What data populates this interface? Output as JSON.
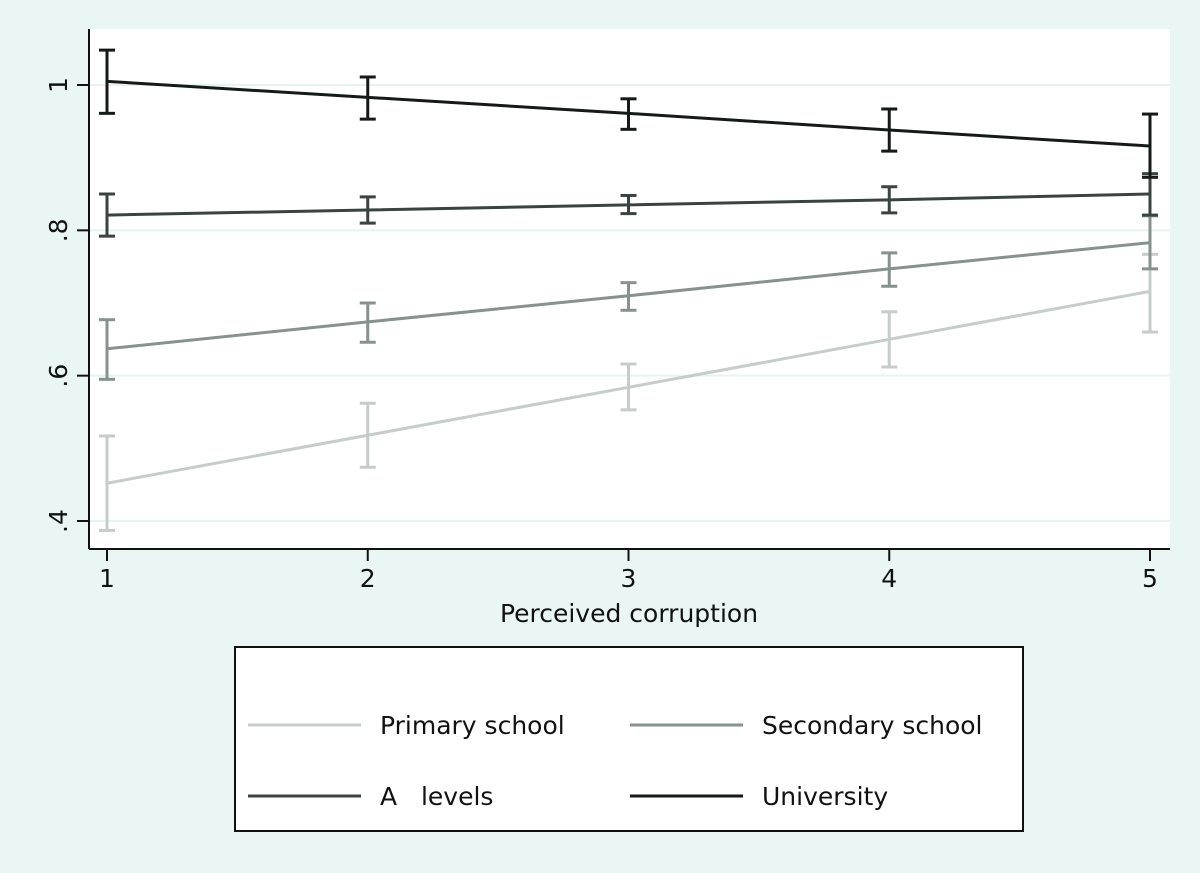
{
  "chart_data": {
    "type": "line",
    "title": "",
    "xlabel": "Perceived corruption",
    "ylabel": "",
    "x": [
      1,
      2,
      3,
      4,
      5
    ],
    "xlim": [
      1,
      5
    ],
    "ylim": [
      0.37,
      1.075
    ],
    "xticks": [
      "1",
      "2",
      "3",
      "4",
      "5"
    ],
    "yticks": [
      {
        "v": 0.4,
        "label": ".4"
      },
      {
        "v": 0.6,
        "label": ".6"
      },
      {
        "v": 0.8,
        "label": ".8"
      },
      {
        "v": 1.0,
        "label": "1"
      }
    ],
    "grid": true,
    "error_bars": true,
    "legend_position": "bottom",
    "series": [
      {
        "name": "Primary school",
        "color": "#c5ccc9",
        "values": [
          0.452,
          0.518,
          0.584,
          0.65,
          0.716
        ],
        "lower": [
          0.387,
          0.474,
          0.553,
          0.612,
          0.66
        ],
        "upper": [
          0.517,
          0.562,
          0.616,
          0.688,
          0.767
        ]
      },
      {
        "name": "Secondary school",
        "color": "#87918e",
        "values": [
          0.637,
          0.674,
          0.71,
          0.747,
          0.783
        ],
        "lower": [
          0.595,
          0.646,
          0.69,
          0.723,
          0.747
        ],
        "upper": [
          0.677,
          0.7,
          0.728,
          0.769,
          0.82
        ]
      },
      {
        "name": "A   levels",
        "color": "#3a4341",
        "values": [
          0.821,
          0.828,
          0.835,
          0.842,
          0.85
        ],
        "lower": [
          0.792,
          0.81,
          0.823,
          0.824,
          0.821
        ],
        "upper": [
          0.85,
          0.846,
          0.848,
          0.86,
          0.878
        ]
      },
      {
        "name": "University",
        "color": "#151a19",
        "values": [
          1.005,
          0.983,
          0.961,
          0.938,
          0.916
        ],
        "lower": [
          0.961,
          0.953,
          0.939,
          0.909,
          0.873
        ],
        "upper": [
          1.048,
          1.011,
          0.981,
          0.967,
          0.96
        ]
      }
    ]
  }
}
